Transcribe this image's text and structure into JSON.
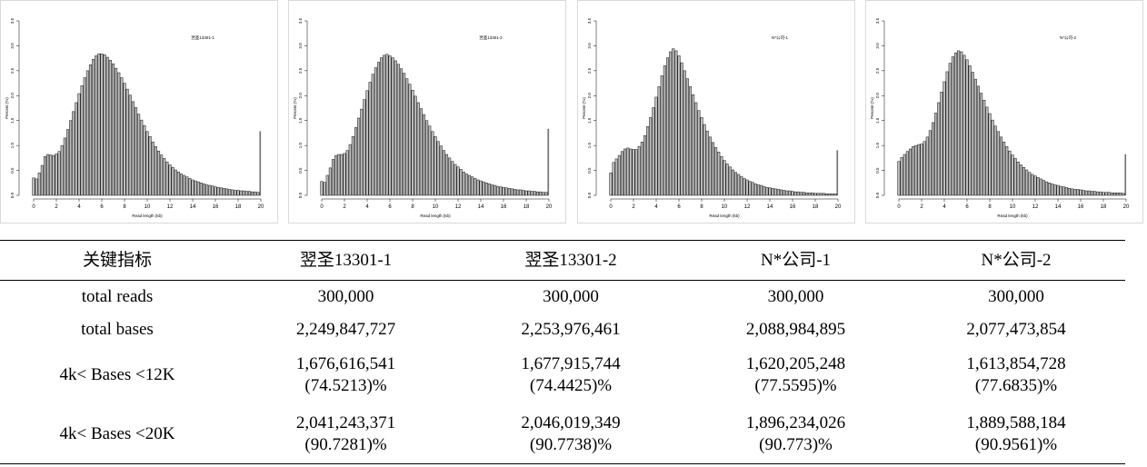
{
  "chart_data": [
    {
      "type": "bar",
      "title": "翌圣13301-1",
      "xlabel": "Read length (kb)",
      "ylabel": "Percent (%)",
      "xlim": [
        0,
        20
      ],
      "ylim": [
        0,
        3.5
      ],
      "x_ticks": [
        "0",
        "2",
        "4",
        "6",
        "8",
        "10",
        "12",
        "14",
        "16",
        "18",
        "20"
      ],
      "y_ticks": [
        "0.0",
        "0.5",
        "1.0",
        "1.5",
        "2.0",
        "2.5",
        "3.0",
        "3.5"
      ],
      "values": [
        0.35,
        0.33,
        0.45,
        0.6,
        0.78,
        0.82,
        0.81,
        0.8,
        0.83,
        0.88,
        1.0,
        1.15,
        1.32,
        1.5,
        1.68,
        1.86,
        2.04,
        2.2,
        2.36,
        2.5,
        2.62,
        2.73,
        2.8,
        2.84,
        2.84,
        2.82,
        2.77,
        2.71,
        2.64,
        2.55,
        2.46,
        2.36,
        2.25,
        2.13,
        2.01,
        1.88,
        1.76,
        1.63,
        1.51,
        1.4,
        1.28,
        1.18,
        1.07,
        0.98,
        0.89,
        0.81,
        0.74,
        0.67,
        0.61,
        0.56,
        0.51,
        0.47,
        0.43,
        0.4,
        0.37,
        0.34,
        0.31,
        0.29,
        0.27,
        0.25,
        0.23,
        0.21,
        0.2,
        0.19,
        0.17,
        0.16,
        0.15,
        0.14,
        0.13,
        0.12,
        0.11,
        0.1,
        0.1,
        0.09,
        0.09,
        0.08,
        0.08,
        0.07,
        0.07,
        0.06,
        1.28
      ]
    },
    {
      "type": "bar",
      "title": "翌圣13301-2",
      "xlabel": "Read length (kb)",
      "ylabel": "Percent (%)",
      "xlim": [
        0,
        20
      ],
      "ylim": [
        0,
        3.5
      ],
      "x_ticks": [
        "0",
        "2",
        "4",
        "6",
        "8",
        "10",
        "12",
        "14",
        "16",
        "18",
        "20"
      ],
      "y_ticks": [
        "0.0",
        "0.5",
        "1.0",
        "1.5",
        "2.0",
        "2.5",
        "3.0",
        "3.5"
      ],
      "values": [
        0.28,
        0.26,
        0.4,
        0.55,
        0.72,
        0.8,
        0.82,
        0.82,
        0.84,
        0.9,
        1.02,
        1.18,
        1.36,
        1.55,
        1.73,
        1.92,
        2.1,
        2.27,
        2.43,
        2.56,
        2.67,
        2.76,
        2.81,
        2.83,
        2.8,
        2.76,
        2.7,
        2.63,
        2.54,
        2.45,
        2.34,
        2.23,
        2.11,
        1.99,
        1.86,
        1.74,
        1.62,
        1.5,
        1.39,
        1.28,
        1.18,
        1.08,
        0.99,
        0.9,
        0.82,
        0.75,
        0.68,
        0.62,
        0.57,
        0.52,
        0.47,
        0.43,
        0.4,
        0.37,
        0.34,
        0.31,
        0.29,
        0.27,
        0.25,
        0.23,
        0.21,
        0.2,
        0.18,
        0.17,
        0.16,
        0.15,
        0.14,
        0.13,
        0.12,
        0.11,
        0.11,
        0.1,
        0.09,
        0.09,
        0.08,
        0.08,
        0.07,
        0.07,
        0.06,
        0.06,
        1.33
      ]
    },
    {
      "type": "bar",
      "title": "N*公司-1",
      "xlabel": "Read length (kb)",
      "ylabel": "Percent (%)",
      "xlim": [
        0,
        20
      ],
      "ylim": [
        0,
        3.5
      ],
      "x_ticks": [
        "0",
        "2",
        "4",
        "6",
        "8",
        "10",
        "12",
        "14",
        "16",
        "18",
        "20"
      ],
      "y_ticks": [
        "0.0",
        "0.5",
        "1.0",
        "1.5",
        "2.0",
        "2.5",
        "3.0",
        "3.5"
      ],
      "values": [
        0.45,
        0.66,
        0.73,
        0.8,
        0.88,
        0.93,
        0.95,
        0.93,
        0.92,
        0.92,
        0.98,
        1.07,
        1.2,
        1.38,
        1.56,
        1.76,
        1.97,
        2.18,
        2.4,
        2.6,
        2.76,
        2.88,
        2.94,
        2.9,
        2.8,
        2.66,
        2.5,
        2.34,
        2.18,
        2.02,
        1.86,
        1.7,
        1.56,
        1.42,
        1.29,
        1.17,
        1.06,
        0.96,
        0.87,
        0.78,
        0.7,
        0.63,
        0.57,
        0.51,
        0.46,
        0.42,
        0.38,
        0.34,
        0.31,
        0.28,
        0.26,
        0.23,
        0.21,
        0.2,
        0.18,
        0.16,
        0.15,
        0.14,
        0.13,
        0.12,
        0.11,
        0.1,
        0.09,
        0.09,
        0.08,
        0.07,
        0.07,
        0.06,
        0.06,
        0.05,
        0.05,
        0.05,
        0.04,
        0.04,
        0.04,
        0.04,
        0.03,
        0.03,
        0.03,
        0.03,
        0.9
      ]
    },
    {
      "type": "bar",
      "title": "N*公司-2",
      "xlabel": "Read length (kb)",
      "ylabel": "Percent (%)",
      "xlim": [
        0,
        20
      ],
      "ylim": [
        0,
        3.5
      ],
      "x_ticks": [
        "0",
        "2",
        "4",
        "6",
        "8",
        "10",
        "12",
        "14",
        "16",
        "18",
        "20"
      ],
      "y_ticks": [
        "0.0",
        "0.5",
        "1.0",
        "1.5",
        "2.0",
        "2.5",
        "3.0",
        "3.5"
      ],
      "values": [
        0.68,
        0.76,
        0.82,
        0.88,
        0.93,
        0.98,
        1.0,
        1.02,
        1.03,
        1.08,
        1.17,
        1.3,
        1.46,
        1.65,
        1.86,
        2.07,
        2.28,
        2.48,
        2.65,
        2.78,
        2.86,
        2.9,
        2.88,
        2.81,
        2.72,
        2.6,
        2.47,
        2.33,
        2.19,
        2.05,
        1.91,
        1.77,
        1.64,
        1.51,
        1.39,
        1.28,
        1.17,
        1.07,
        0.98,
        0.89,
        0.81,
        0.74,
        0.67,
        0.61,
        0.56,
        0.51,
        0.46,
        0.42,
        0.39,
        0.36,
        0.33,
        0.3,
        0.27,
        0.25,
        0.23,
        0.21,
        0.2,
        0.18,
        0.17,
        0.16,
        0.14,
        0.13,
        0.12,
        0.12,
        0.11,
        0.1,
        0.09,
        0.09,
        0.08,
        0.08,
        0.07,
        0.07,
        0.06,
        0.06,
        0.06,
        0.05,
        0.05,
        0.05,
        0.05,
        0.04,
        0.82
      ]
    }
  ],
  "table": {
    "headers": [
      "关键指标",
      "翌圣13301-1",
      "翌圣13301-2",
      "N*公司-1",
      "N*公司-2"
    ],
    "rows": [
      {
        "label": "total reads",
        "cells": [
          [
            "300,000"
          ],
          [
            "300,000"
          ],
          [
            "300,000"
          ],
          [
            "300,000"
          ]
        ]
      },
      {
        "label": "total bases",
        "cells": [
          [
            "2,249,847,727"
          ],
          [
            "2,253,976,461"
          ],
          [
            "2,088,984,895"
          ],
          [
            "2,077,473,854"
          ]
        ]
      },
      {
        "label": "4k< Bases <12K",
        "cells": [
          [
            "1,676,616,541",
            "(74.5213)%"
          ],
          [
            "1,677,915,744",
            "(74.4425)%"
          ],
          [
            "1,620,205,248",
            "(77.5595)%"
          ],
          [
            "1,613,854,728",
            "(77.6835)%"
          ]
        ]
      },
      {
        "label": "4k< Bases <20K",
        "cells": [
          [
            "2,041,243,371",
            "(90.7281)%"
          ],
          [
            "2,046,019,349",
            "(90.7738)%"
          ],
          [
            "1,896,234,026",
            "(90.773)%"
          ],
          [
            "1,889,588,184",
            "(90.9561)%"
          ]
        ]
      }
    ]
  }
}
